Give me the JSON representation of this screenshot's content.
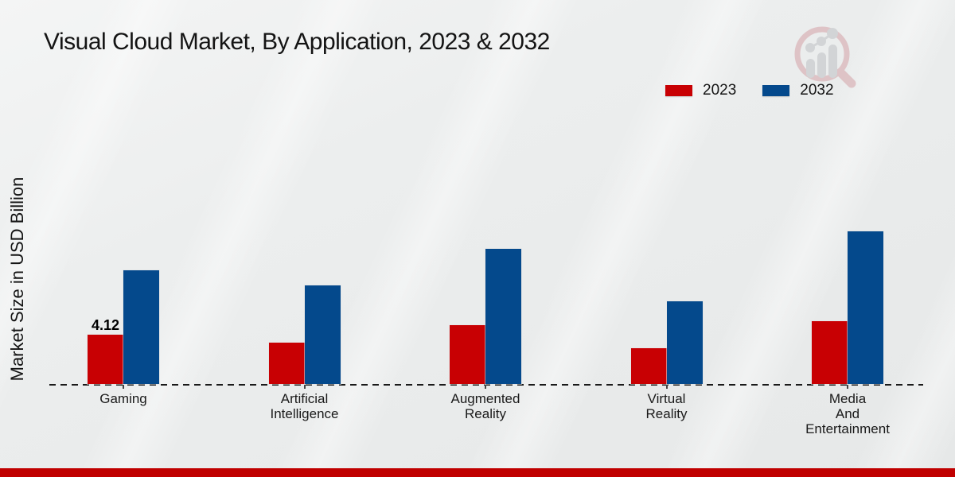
{
  "header": {
    "title": "Visual Cloud Market, By Application, 2023 & 2032"
  },
  "axis": {
    "y_label": "Market Size in USD Billion"
  },
  "legend": {
    "items": [
      {
        "label": "2023",
        "color": "#c80003"
      },
      {
        "label": "2032",
        "color": "#04498c"
      }
    ]
  },
  "watermark": {
    "name": "market-research-magnifier-logo"
  },
  "footer": {
    "bar_color": "#c00000"
  },
  "chart_data": {
    "type": "bar",
    "title": "Visual Cloud Market, By Application, 2023 & 2032",
    "xlabel": "",
    "ylabel": "Market Size in USD Billion",
    "categories": [
      "Gaming",
      "Artificial\nIntelligence",
      "Augmented\nReality",
      "Virtual\nReality",
      "Media\nAnd\nEntertainment"
    ],
    "series": [
      {
        "name": "2023",
        "color": "#c80003",
        "values": [
          4.12,
          3.45,
          4.9,
          3.0,
          5.25
        ],
        "value_labels": [
          "4.12",
          "",
          "",
          "",
          ""
        ]
      },
      {
        "name": "2032",
        "color": "#04498c",
        "values": [
          9.5,
          8.25,
          11.3,
          6.9,
          12.75
        ],
        "value_labels": [
          "",
          "",
          "",
          "",
          ""
        ]
      }
    ],
    "ylim": [
      0,
      13.5
    ],
    "grid": false,
    "y_axis_ticks_visible": false,
    "baseline_style": "dashed",
    "legend_position": "top-right"
  }
}
